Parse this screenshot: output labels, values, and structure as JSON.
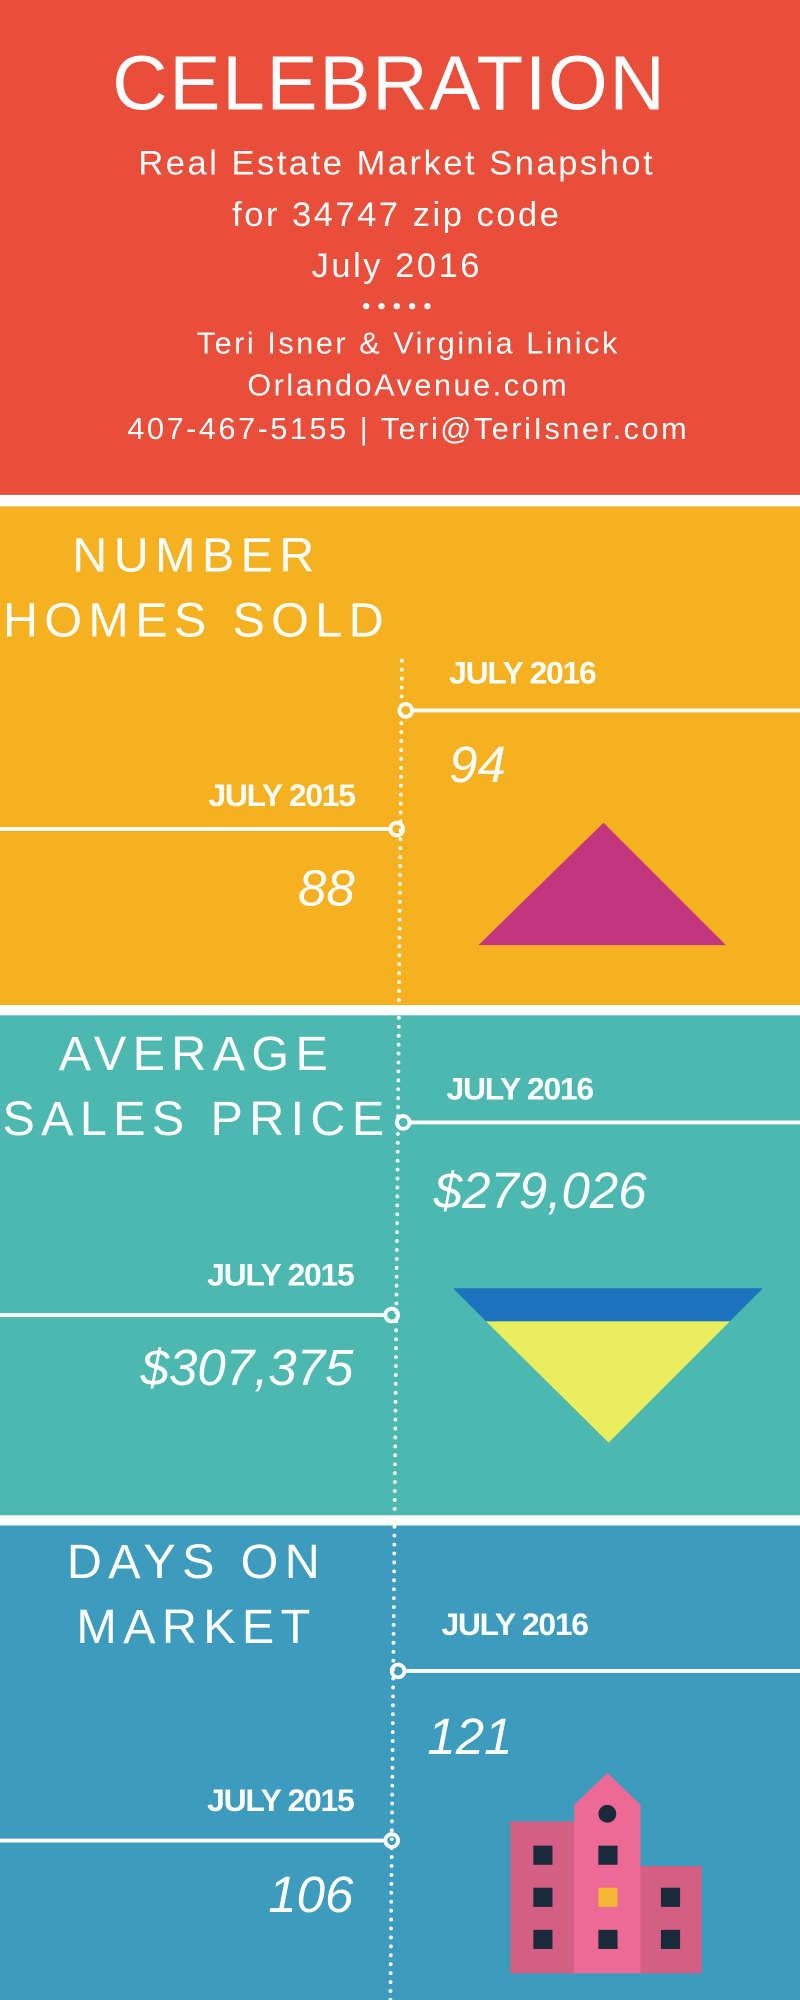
{
  "header": {
    "title": "CELEBRATION",
    "subtitle_lines": [
      "Real Estate Market Snapshot",
      "for 34747 zip code",
      "July 2016"
    ],
    "contact_lines": [
      "Teri Isner & Virginia Linick",
      "OrlandoAvenue.com",
      "407-467-5155 | Teri@TeriIsner.com"
    ]
  },
  "sections": [
    {
      "title_lines": [
        "NUMBER",
        "HOMES SOLD"
      ],
      "current": {
        "label": "JULY 2016",
        "value": "94"
      },
      "previous": {
        "label": "JULY 2015",
        "value": "88"
      }
    },
    {
      "title_lines": [
        "AVERAGE",
        "SALES PRICE"
      ],
      "current": {
        "label": "JULY 2016",
        "value": "$279,026"
      },
      "previous": {
        "label": "JULY 2015",
        "value": "$307,375"
      }
    },
    {
      "title_lines": [
        "DAYS ON",
        "MARKET"
      ],
      "current": {
        "label": "JULY 2016",
        "value": "121"
      },
      "previous": {
        "label": "JULY 2015",
        "value": "106"
      }
    }
  ]
}
